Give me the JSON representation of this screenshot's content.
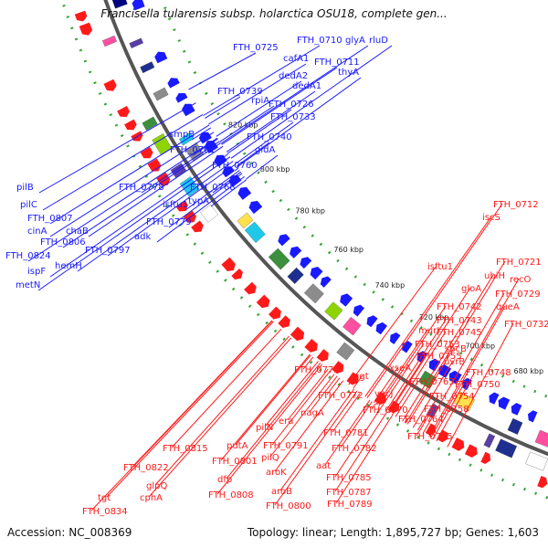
{
  "title": "Francisella tularensis subsp. holarctica OSU18, complete gen...",
  "accession": "Accession: NC_008369",
  "topology": "Topology: linear; Length: 1,895,727 bp; Genes: 1,603",
  "colors": {
    "forward": "#1a1aff",
    "reverse": "#ff1a1a",
    "backbone": "#555555",
    "dots": "#33a633"
  },
  "scale_labels": [
    "680 kbp",
    "700 kbp",
    "720 kbp",
    "740 kbp",
    "760 kbp",
    "780 kbp",
    "800 kbp",
    "820 kbp"
  ],
  "forward_labels": [
    "FTH_0710",
    "glyA",
    "rluD",
    "FTH_0725",
    "cafA1",
    "FTH_0711",
    "thyA",
    "dedA2",
    "dedA1",
    "FTH_0739",
    "rpiA",
    "FTH_0726",
    "FTH_0733",
    "smpB",
    "FTH_0740",
    "FTH_0761",
    "gidA",
    "FTH_0760",
    "FTH_0778",
    "FTH_0768",
    "isftu1",
    "typA",
    "pilB",
    "pilC",
    "FTH_0807",
    "FTH_0779",
    "chaB",
    "cinA",
    "FTH_0806",
    "adk",
    "FTH_0797",
    "FTH_0824",
    "hemH",
    "ispF",
    "metN"
  ],
  "reverse_labels": [
    "FTH_0712",
    "iscS",
    "FTH_0721",
    "ubiH",
    "recO",
    "isftu1",
    "gloA",
    "FTH_0729",
    "queA",
    "FTH_0742",
    "FTH_0732",
    "FTH_0743",
    "murI",
    "FTH_0745",
    "FTH_0753",
    "sbcB",
    "FTH_0755",
    "uvrB",
    "FTH_0748",
    "FTH_0773",
    "ggt",
    "xseA",
    "FTH_0763",
    "FTH_0750",
    "FTH_0772",
    "vacJ",
    "FTH_0754",
    "FTH_0770",
    "FTH_0758",
    "FTH_0764",
    "nagA",
    "era",
    "FTH_0781",
    "FTH_0765",
    "pilN",
    "FTH_0782",
    "FTH_0815",
    "putA",
    "FTH_0791",
    "pilQ",
    "aat",
    "FTH_0801",
    "FTH_0785",
    "aroK",
    "FTH_0822",
    "dfp",
    "FTH_0787",
    "FTH_0808",
    "aroB",
    "FTH_0789",
    "glpQ",
    "FTH_0800",
    "cphA",
    "tgt",
    "FTH_0834"
  ]
}
